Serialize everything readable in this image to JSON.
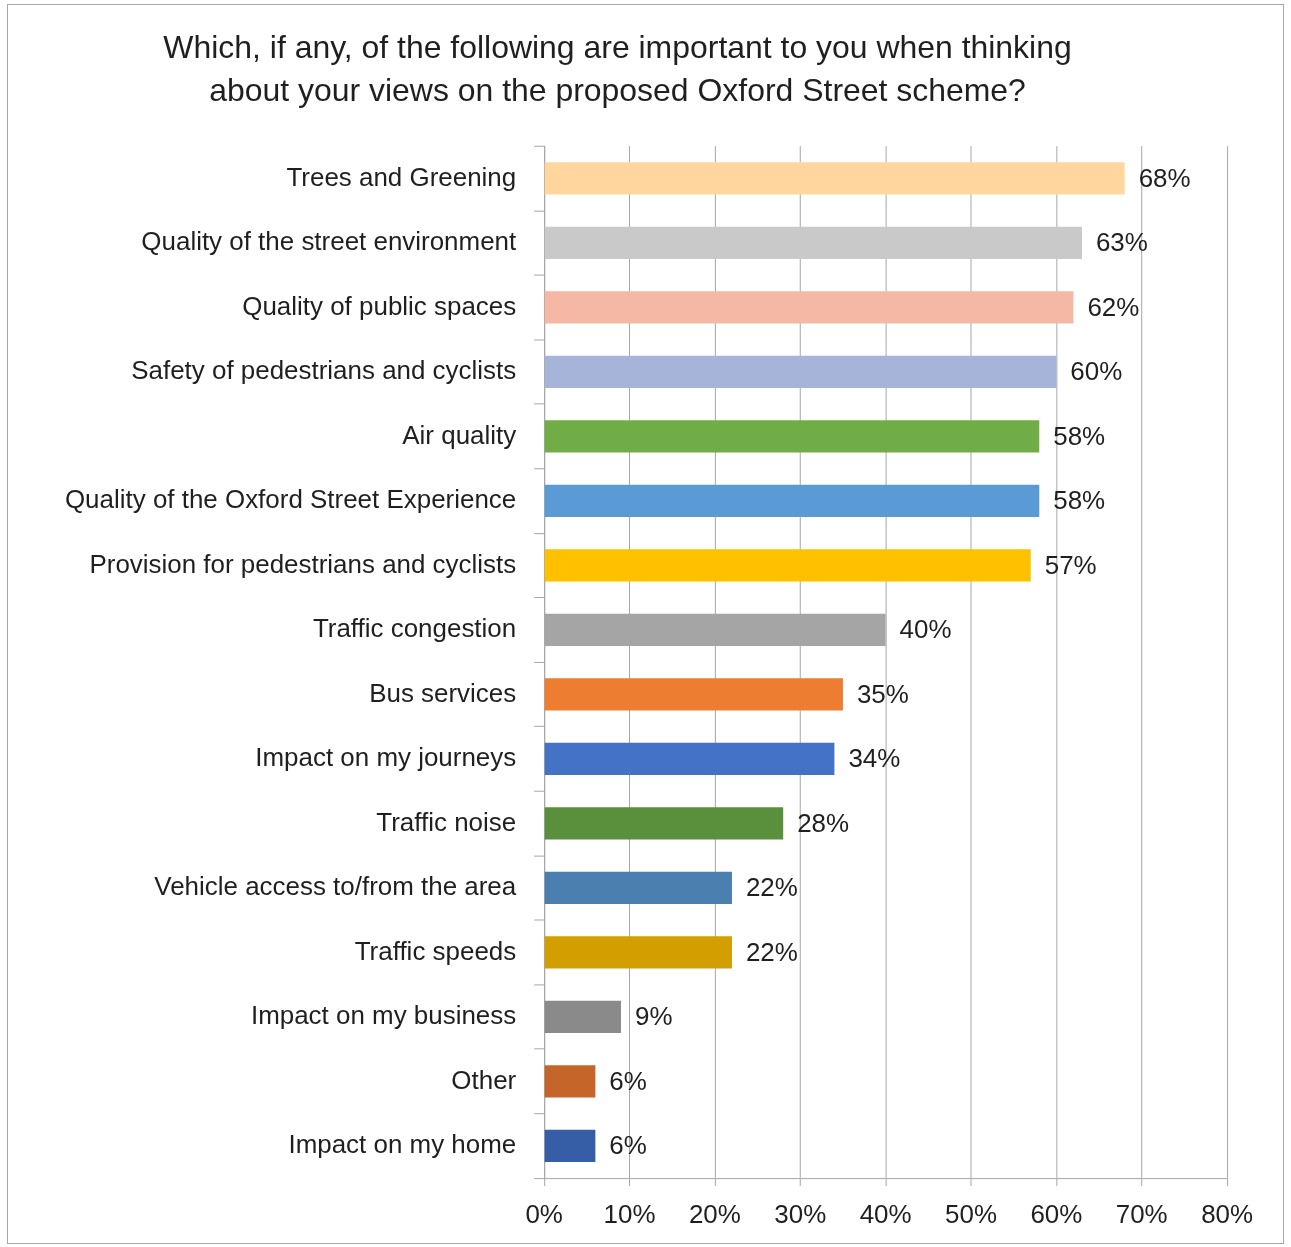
{
  "chart_data": {
    "type": "bar",
    "orientation": "horizontal",
    "title": "Which, if any, of the following are important to you when thinking about your views on the proposed Oxford Street scheme?",
    "categories": [
      "Trees and Greening",
      "Quality of the street environment",
      "Quality of public spaces",
      "Safety of pedestrians and cyclists",
      "Air quality",
      "Quality of the Oxford Street Experience",
      "Provision for pedestrians and cyclists",
      "Traffic congestion",
      "Bus services",
      "Impact on my journeys",
      "Traffic noise",
      "Vehicle access to/from the area",
      "Traffic speeds",
      "Impact on my business",
      "Other",
      "Impact on my home"
    ],
    "values": [
      68,
      63,
      62,
      60,
      58,
      58,
      57,
      40,
      35,
      34,
      28,
      22,
      22,
      9,
      6,
      6
    ],
    "colors": [
      "#ffd79e",
      "#c9c9c9",
      "#f4b8a4",
      "#a7b4da",
      "#70ad47",
      "#5b9bd5",
      "#ffc000",
      "#a5a5a5",
      "#ed7d31",
      "#4472c4",
      "#5a8f3b",
      "#4a7faf",
      "#d39f00",
      "#8a8a8a",
      "#c5652a",
      "#365ea6"
    ],
    "value_labels": [
      "68%",
      "63%",
      "62%",
      "60%",
      "58%",
      "58%",
      "57%",
      "40%",
      "35%",
      "34%",
      "28%",
      "22%",
      "22%",
      "9%",
      "6%",
      "6%"
    ],
    "xlim": [
      0,
      80
    ],
    "xticks": [
      {
        "value": 0,
        "label": "0%"
      },
      {
        "value": 10,
        "label": "10%"
      },
      {
        "value": 20,
        "label": "20%"
      },
      {
        "value": 30,
        "label": "30%"
      },
      {
        "value": 40,
        "label": "40%"
      },
      {
        "value": 50,
        "label": "50%"
      },
      {
        "value": 60,
        "label": "60%"
      },
      {
        "value": 70,
        "label": "70%"
      },
      {
        "value": 80,
        "label": "80%"
      }
    ],
    "grid": "x"
  }
}
